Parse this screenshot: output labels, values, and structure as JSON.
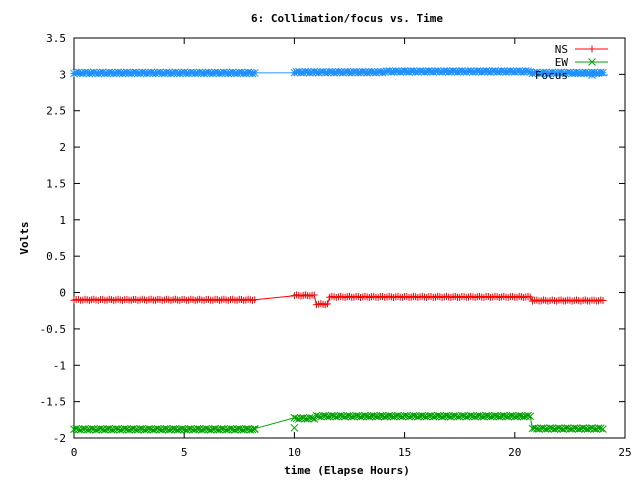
{
  "chart_data": {
    "type": "line",
    "title": "6: Collimation/focus vs. Time",
    "xlabel": "time (Elapse Hours)",
    "ylabel": "Volts",
    "xlim": [
      0,
      25
    ],
    "ylim": [
      -2,
      3.5
    ],
    "xticks": [
      0,
      5,
      10,
      15,
      20,
      25
    ],
    "yticks": [
      -2,
      -1.5,
      -1,
      -0.5,
      0,
      0.5,
      1,
      1.5,
      2,
      2.5,
      3,
      3.5
    ],
    "xtick_labels": [
      "0",
      "5",
      "10",
      "15",
      "20",
      "25"
    ],
    "ytick_labels": [
      "-2",
      "-1.5",
      "-1",
      "-0.5",
      "0",
      "0.5",
      "1",
      "1.5",
      "2",
      "2.5",
      "3",
      "3.5"
    ],
    "grid": false,
    "legend_position": "top-right",
    "series": [
      {
        "name": "NS",
        "color": "#ff0000",
        "marker": "plus",
        "segments": [
          {
            "x_start": 0.0,
            "x_end": 8.2,
            "step": 0.1,
            "base": -0.1
          },
          {
            "x_start": 10.0,
            "x_end": 10.9,
            "step": 0.1,
            "base": -0.04
          },
          {
            "x_start": 11.0,
            "x_end": 11.5,
            "step": 0.1,
            "base": -0.16
          },
          {
            "x_start": 11.6,
            "x_end": 20.7,
            "step": 0.1,
            "base": -0.06
          },
          {
            "x_start": 20.8,
            "x_end": 24.0,
            "step": 0.1,
            "base": -0.11
          }
        ]
      },
      {
        "name": "EW",
        "color": "#00a000",
        "marker": "cross",
        "segments": [
          {
            "x_start": 0.0,
            "x_end": 8.2,
            "step": 0.1,
            "base": -1.88
          },
          {
            "x_start": 10.0,
            "x_end": 10.9,
            "step": 0.1,
            "base": -1.73
          },
          {
            "x_start": 11.0,
            "x_end": 20.7,
            "step": 0.1,
            "base": -1.7
          },
          {
            "x_start": 20.8,
            "x_end": 24.0,
            "step": 0.1,
            "base": -1.87
          }
        ],
        "gap_points": [
          [
            8.2,
            -1.88
          ],
          [
            10.0,
            -1.86
          ]
        ]
      },
      {
        "name": "Focus",
        "color": "#1e90ff",
        "marker": "star",
        "segments": [
          {
            "x_start": 0.0,
            "x_end": 8.2,
            "step": 0.1,
            "base": 3.02
          },
          {
            "x_start": 10.0,
            "x_end": 14.0,
            "step": 0.1,
            "base": 3.03
          },
          {
            "x_start": 14.1,
            "x_end": 20.7,
            "step": 0.1,
            "base": 3.04
          },
          {
            "x_start": 20.8,
            "x_end": 24.0,
            "step": 0.1,
            "base": 3.02
          }
        ]
      }
    ],
    "legend": [
      {
        "label": "NS",
        "color": "#ff0000",
        "marker": "plus"
      },
      {
        "label": "EW",
        "color": "#00a000",
        "marker": "cross"
      },
      {
        "label": "Focus",
        "color": "#1e90ff",
        "marker": "star"
      }
    ]
  }
}
